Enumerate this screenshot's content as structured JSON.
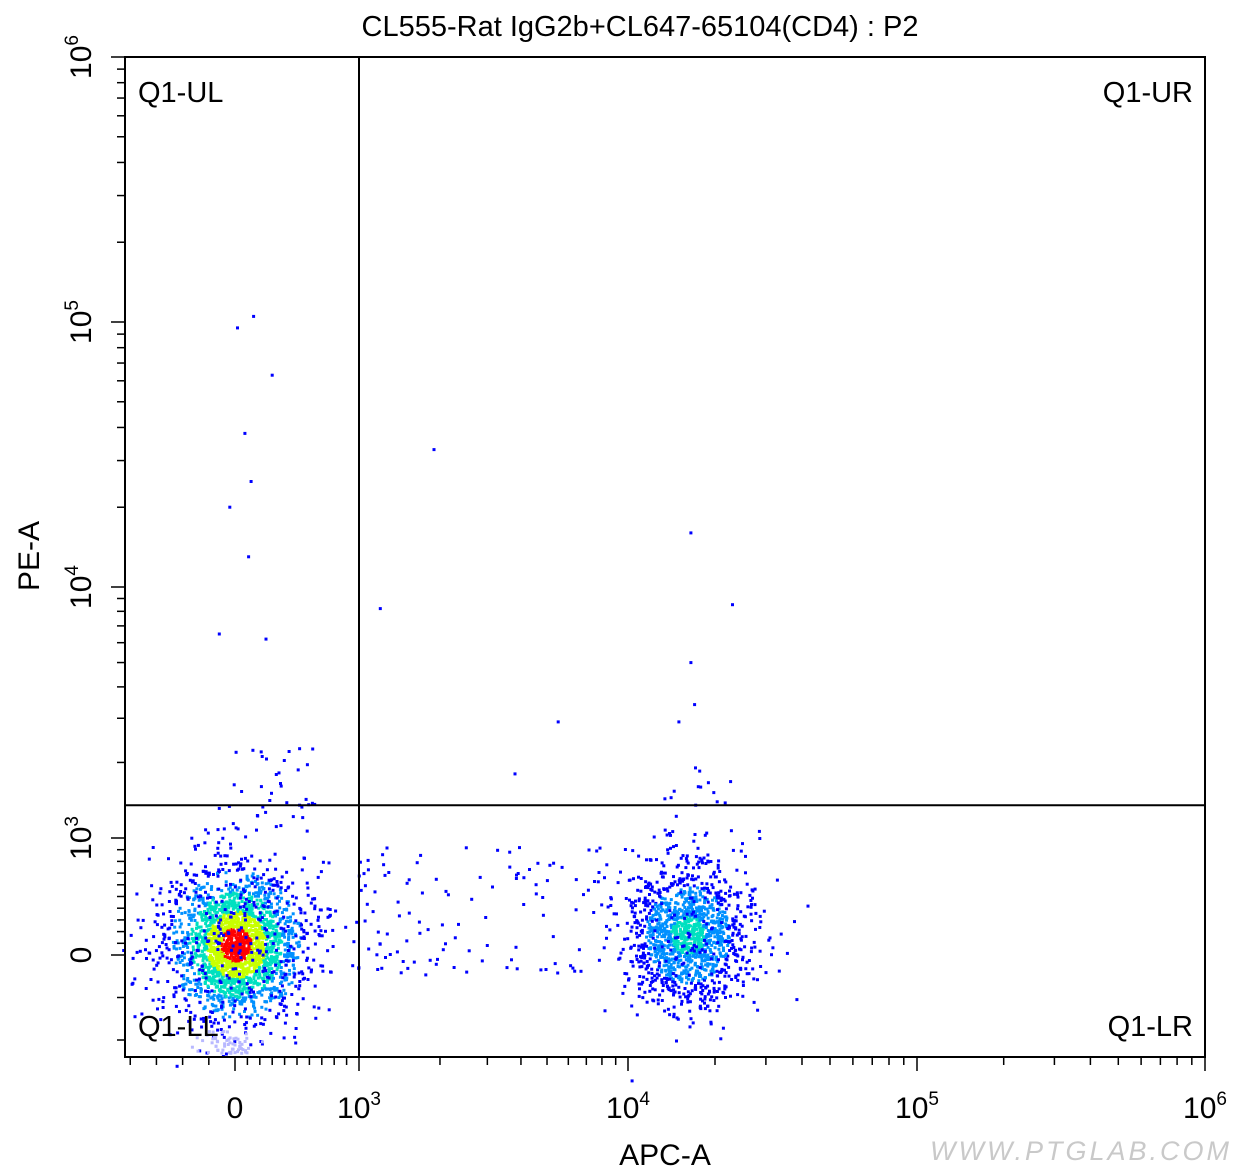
{
  "chart_data": {
    "type": "scatter",
    "title": "CL555-Rat IgG2b+CL647-65104(CD4) : P2",
    "xlabel": "APC-A",
    "ylabel": "PE-A",
    "x_scale": "biexponential",
    "y_scale": "biexponential",
    "x_ticks": [
      {
        "value": 0,
        "base": "0",
        "exp": ""
      },
      {
        "value": 1000,
        "base": "10",
        "exp": "3"
      },
      {
        "value": 10000,
        "base": "10",
        "exp": "4"
      },
      {
        "value": 100000,
        "base": "10",
        "exp": "5"
      },
      {
        "value": 1000000,
        "base": "10",
        "exp": "6"
      }
    ],
    "y_ticks": [
      {
        "value": 0,
        "base": "0",
        "exp": ""
      },
      {
        "value": 1000,
        "base": "10",
        "exp": "3"
      },
      {
        "value": 10000,
        "base": "10",
        "exp": "4"
      },
      {
        "value": 100000,
        "base": "10",
        "exp": "5"
      },
      {
        "value": 1000000,
        "base": "10",
        "exp": "6"
      }
    ],
    "gate": {
      "x": 1000,
      "y": 1350
    },
    "quadrants": {
      "ul": "Q1-UL",
      "ur": "Q1-UR",
      "ll": "Q1-LL",
      "lr": "Q1-LR"
    },
    "populations": [
      {
        "name": "",
        "center_x": 0,
        "center_y": 200,
        "density": "high"
      },
      {
        "name": "",
        "center_x": 17000,
        "center_y": 250,
        "density": "medium"
      }
    ],
    "outliers": [
      {
        "x": 20,
        "y": 95000
      },
      {
        "x": 150,
        "y": 105000
      },
      {
        "x": 300,
        "y": 63000
      },
      {
        "x": 80,
        "y": 38000
      },
      {
        "x": 130,
        "y": 25000
      },
      {
        "x": -20,
        "y": 20000
      },
      {
        "x": 110,
        "y": 13000
      },
      {
        "x": -60,
        "y": 6500
      },
      {
        "x": 250,
        "y": 6200
      },
      {
        "x": 1900,
        "y": 33000
      },
      {
        "x": 1200,
        "y": 8200
      },
      {
        "x": 16500,
        "y": 16000
      },
      {
        "x": 23000,
        "y": 8500
      },
      {
        "x": 16500,
        "y": 5000
      },
      {
        "x": 5500,
        "y": 2900
      },
      {
        "x": 3800,
        "y": 1800
      },
      {
        "x": 15000,
        "y": 2900
      },
      {
        "x": 17000,
        "y": 3400
      }
    ],
    "colormap": [
      "#0000ff",
      "#0090ff",
      "#00e0c0",
      "#c8ff00",
      "#ff0000"
    ]
  },
  "watermark": "WWW.PTGLAB.COM"
}
